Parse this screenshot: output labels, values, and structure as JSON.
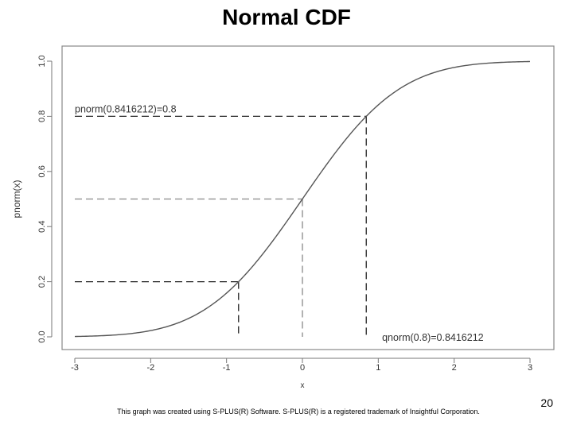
{
  "slide": {
    "title": "Normal CDF",
    "footer": "This graph was created using S-PLUS(R) Software. S-PLUS(R) is a registered trademark of Insightful Corporation.",
    "page_number": "20"
  },
  "chart_data": {
    "type": "line",
    "title": "",
    "xlabel": "x",
    "ylabel": "pnorm(x)",
    "xlim": [
      -3,
      3
    ],
    "ylim": [
      0,
      1
    ],
    "x_ticks": [
      -3,
      -2,
      -1,
      0,
      1,
      2,
      3
    ],
    "x_tick_labels": [
      "-3",
      "-2",
      "-1",
      "0",
      "1",
      "2",
      "3"
    ],
    "y_ticks": [
      0,
      0.2,
      0.4,
      0.6,
      0.8,
      1
    ],
    "y_tick_labels": [
      "0.0",
      "0.2",
      "0.4",
      "0.6",
      "0.8",
      "1.0"
    ],
    "grid": false,
    "series": [
      {
        "function": "normal-cdf",
        "mean": 0,
        "sd": 1,
        "x_range": [
          -3,
          3
        ],
        "color": "#555555"
      }
    ],
    "reference_lines": [
      {
        "x": -0.8416212,
        "y": 0.2,
        "color": "#222222"
      },
      {
        "x": 0,
        "y": 0.5,
        "color": "#888888"
      },
      {
        "x": 0.8416212,
        "y": 0.8,
        "color": "#222222"
      }
    ],
    "annotations": [
      {
        "text": "pnorm(0.8416212)=0.8",
        "x": -3,
        "y": 0.8,
        "position": "above-left"
      },
      {
        "text": "qnorm(0.8)=0.8416212",
        "x": 1.05,
        "y": 0,
        "position": "bottom-right"
      }
    ]
  }
}
